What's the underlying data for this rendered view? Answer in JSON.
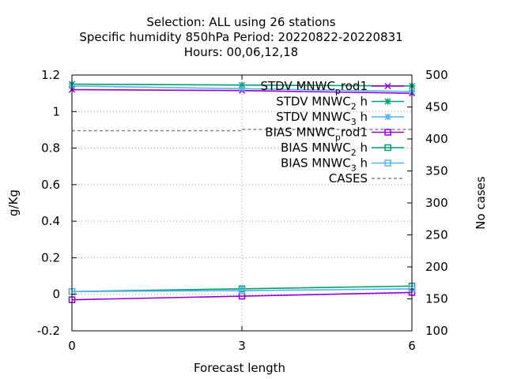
{
  "chart_data": {
    "type": "line",
    "title_lines": [
      "Selection: ALL using    26 stations",
      "Specific humidity 850hPa   Period: 20220822-20220831",
      "Hours:  00,06,12,18"
    ],
    "xlabel": "Forecast length",
    "ylabel": "g/Kg",
    "y2label": "No cases",
    "xlim": [
      0,
      6
    ],
    "ylim": [
      -0.2,
      1.2
    ],
    "y2lim": [
      100,
      500
    ],
    "xticks": [
      "0",
      "3",
      "6"
    ],
    "yticks": [
      "-0.2",
      "0",
      "0.2",
      "0.4",
      "0.6",
      "0.8",
      "1",
      "1.2"
    ],
    "y2ticks": [
      "100",
      "150",
      "200",
      "250",
      "300",
      "350",
      "400",
      "450",
      "500"
    ],
    "grid": true,
    "legend_position": "top-right",
    "x": [
      0,
      3,
      6
    ],
    "series": [
      {
        "name": "STDV MNWC_prod1",
        "legend_main": "STDV MNWC",
        "legend_sub": "p",
        "legend_rest": "rod1",
        "color": "#9400d3",
        "marker": "x",
        "values": [
          1.12,
          1.115,
          1.1
        ]
      },
      {
        "name": "STDV MNWC_2h",
        "legend_main": "STDV MNWC",
        "legend_sub": "2",
        "legend_rest": " h",
        "color": "#009e73",
        "marker": "star",
        "values": [
          1.15,
          1.145,
          1.14
        ]
      },
      {
        "name": "STDV MNWC_3h",
        "legend_main": "STDV MNWC",
        "legend_sub": "3",
        "legend_rest": " h",
        "color": "#56b4e9",
        "marker": "star",
        "values": [
          1.14,
          1.125,
          1.11
        ]
      },
      {
        "name": "BIAS MNWC_prod1",
        "legend_main": "BIAS MNWC",
        "legend_sub": "p",
        "legend_rest": "rod1",
        "color": "#9400d3",
        "marker": "square",
        "values": [
          -0.03,
          -0.01,
          0.01
        ]
      },
      {
        "name": "BIAS MNWC_2h",
        "legend_main": "BIAS MNWC",
        "legend_sub": "2",
        "legend_rest": " h",
        "color": "#009e73",
        "marker": "square",
        "values": [
          0.015,
          0.03,
          0.045
        ]
      },
      {
        "name": "BIAS MNWC_3h",
        "legend_main": "BIAS MNWC",
        "legend_sub": "3",
        "legend_rest": " h",
        "color": "#56b4e9",
        "marker": "square",
        "values": [
          0.015,
          0.02,
          0.03
        ]
      }
    ],
    "cases": {
      "name": "CASES",
      "legend_main": "CASES",
      "color": "#888888",
      "axis": "y2",
      "values": [
        413,
        415,
        416
      ]
    }
  }
}
